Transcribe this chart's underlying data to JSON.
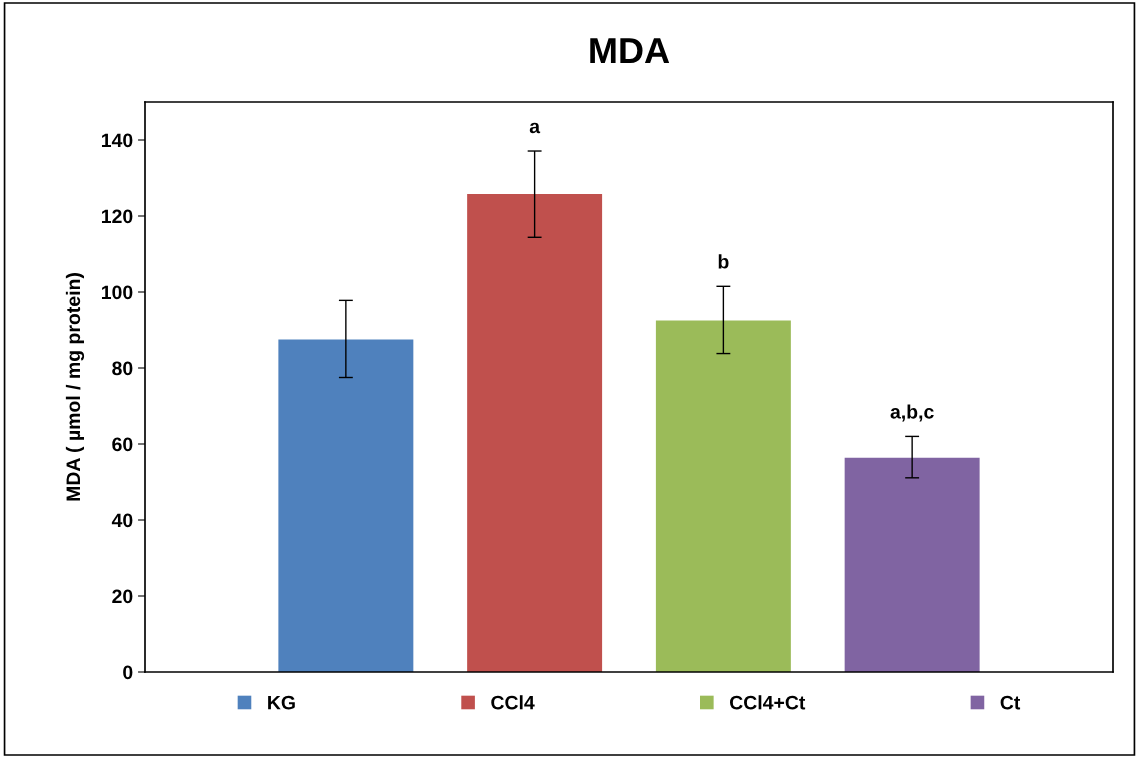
{
  "chart_data": {
    "type": "bar",
    "title": "MDA",
    "ylabel": "MDA ( µmol / mg protein)",
    "categories": [
      null
    ],
    "series": [
      {
        "name": "KG",
        "color": "#4f81bd",
        "values": [
          87.5
        ],
        "errors": [
          [
            77.5,
            97.8
          ]
        ]
      },
      {
        "name": "CCl4",
        "color": "#c0504d",
        "values": [
          125.8
        ],
        "errors": [
          [
            114.4,
            137.1
          ]
        ],
        "value_labels": [
          "a"
        ]
      },
      {
        "name": "CCl4+Ct",
        "color": "#9bbb59",
        "values": [
          92.5
        ],
        "errors": [
          [
            83.8,
            101.5
          ]
        ],
        "value_labels": [
          "b"
        ]
      },
      {
        "name": "Ct",
        "color": "#8064a2",
        "values": [
          56.4
        ],
        "errors": [
          [
            51.1,
            62.0
          ]
        ],
        "value_labels": [
          "a,b,c"
        ]
      }
    ],
    "ylim": [
      0,
      150
    ],
    "yticks": [
      0,
      20,
      40,
      60,
      80,
      100,
      120,
      140
    ],
    "tick_labels": "y",
    "grid": false,
    "legend": "bottom"
  }
}
